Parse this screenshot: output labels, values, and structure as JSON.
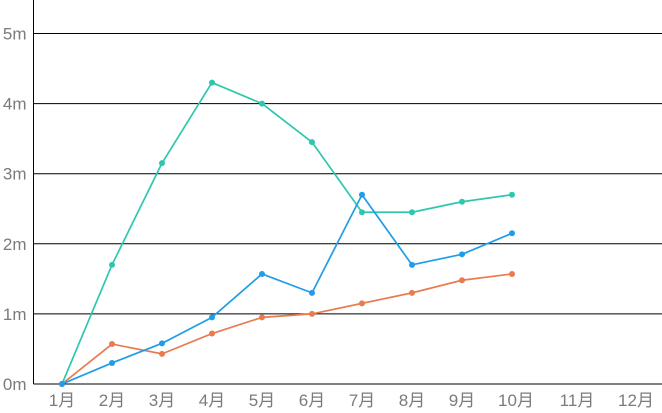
{
  "chart_data": {
    "type": "line",
    "title": "",
    "xlabel": "",
    "ylabel": "",
    "categories": [
      "1月",
      "2月",
      "3月",
      "4月",
      "5月",
      "6月",
      "7月",
      "8月",
      "9月",
      "10月",
      "11月",
      "12月"
    ],
    "series": [
      {
        "name": "teal-series",
        "color": "#2ec7ae",
        "values": [
          0,
          1.7,
          3.15,
          4.3,
          4.0,
          3.45,
          2.45,
          2.45,
          2.6,
          2.7
        ]
      },
      {
        "name": "orange-series",
        "color": "#e87b50",
        "values": [
          0,
          0.57,
          0.43,
          0.72,
          0.95,
          1.0,
          1.15,
          1.3,
          1.48,
          1.57
        ]
      },
      {
        "name": "blue-series",
        "color": "#1f9de8",
        "values": [
          0,
          0.3,
          0.58,
          0.95,
          1.57,
          1.3,
          2.7,
          1.7,
          1.85,
          2.15
        ]
      }
    ],
    "y_ticks": [
      {
        "label": "0m",
        "value": 0
      },
      {
        "label": "1m",
        "value": 1
      },
      {
        "label": "2m",
        "value": 2
      },
      {
        "label": "3m",
        "value": 3
      },
      {
        "label": "4m",
        "value": 4
      },
      {
        "label": "5m",
        "value": 5
      }
    ],
    "ylim": [
      0,
      5.5
    ],
    "grid": "horizontal",
    "grid_color": "#000000",
    "axis_text_color": "#7b7b7b",
    "legend": "none",
    "markers": "dot"
  }
}
